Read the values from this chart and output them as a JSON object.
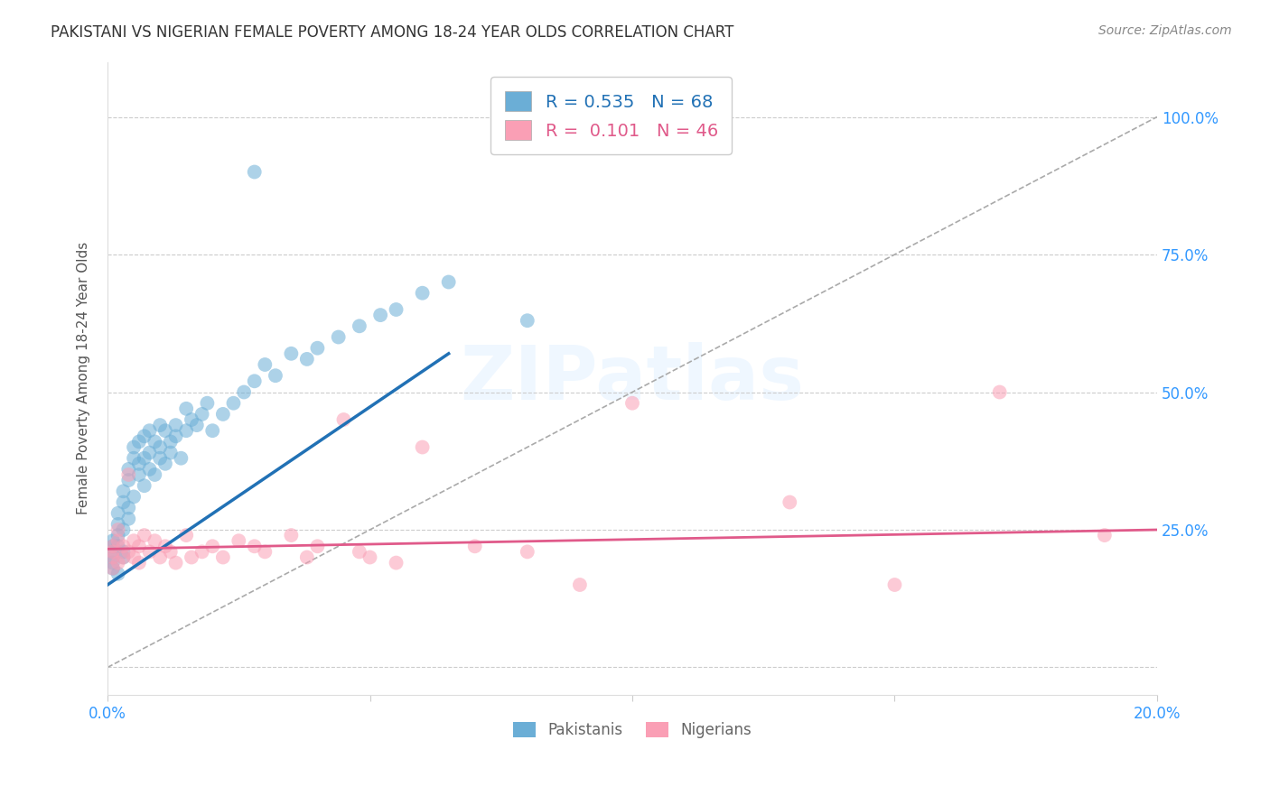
{
  "title": "PAKISTANI VS NIGERIAN FEMALE POVERTY AMONG 18-24 YEAR OLDS CORRELATION CHART",
  "source": "Source: ZipAtlas.com",
  "ylabel": "Female Poverty Among 18-24 Year Olds",
  "xlabel_pakistani": "Pakistanis",
  "xlabel_nigerian": "Nigerians",
  "xmin": 0.0,
  "xmax": 0.2,
  "ymin": -0.05,
  "ymax": 1.1,
  "R_pakistani": 0.535,
  "N_pakistani": 68,
  "R_nigerian": 0.101,
  "N_nigerian": 46,
  "color_pakistani": "#6baed6",
  "color_nigerian": "#fa9fb5",
  "line_color_pakistani": "#2171b5",
  "line_color_nigerian": "#e05a8a",
  "diagonal_color": "#aaaaaa",
  "yticks": [
    0.0,
    0.25,
    0.5,
    0.75,
    1.0
  ],
  "ytick_labels": [
    "",
    "25.0%",
    "50.0%",
    "75.0%",
    "100.0%"
  ],
  "xticks": [
    0.0,
    0.05,
    0.1,
    0.15,
    0.2
  ],
  "xtick_labels": [
    "0.0%",
    "",
    "",
    "",
    "20.0%"
  ],
  "watermark": "ZIPatlas",
  "pakistani_x": [
    0.001,
    0.001,
    0.001,
    0.001,
    0.001,
    0.001,
    0.002,
    0.002,
    0.002,
    0.002,
    0.002,
    0.003,
    0.003,
    0.003,
    0.003,
    0.003,
    0.004,
    0.004,
    0.004,
    0.004,
    0.005,
    0.005,
    0.005,
    0.006,
    0.006,
    0.006,
    0.007,
    0.007,
    0.007,
    0.008,
    0.008,
    0.008,
    0.009,
    0.009,
    0.01,
    0.01,
    0.01,
    0.011,
    0.011,
    0.012,
    0.012,
    0.013,
    0.013,
    0.014,
    0.015,
    0.015,
    0.016,
    0.017,
    0.018,
    0.019,
    0.02,
    0.022,
    0.024,
    0.026,
    0.028,
    0.03,
    0.032,
    0.035,
    0.038,
    0.04,
    0.044,
    0.048,
    0.052,
    0.055,
    0.06,
    0.065,
    0.08,
    0.028
  ],
  "pakistani_y": [
    0.2,
    0.22,
    0.18,
    0.21,
    0.23,
    0.19,
    0.24,
    0.17,
    0.26,
    0.22,
    0.28,
    0.2,
    0.3,
    0.25,
    0.32,
    0.21,
    0.27,
    0.34,
    0.29,
    0.36,
    0.38,
    0.31,
    0.4,
    0.35,
    0.41,
    0.37,
    0.33,
    0.38,
    0.42,
    0.36,
    0.39,
    0.43,
    0.35,
    0.41,
    0.38,
    0.4,
    0.44,
    0.37,
    0.43,
    0.41,
    0.39,
    0.42,
    0.44,
    0.38,
    0.43,
    0.47,
    0.45,
    0.44,
    0.46,
    0.48,
    0.43,
    0.46,
    0.48,
    0.5,
    0.52,
    0.55,
    0.53,
    0.57,
    0.56,
    0.58,
    0.6,
    0.62,
    0.64,
    0.65,
    0.68,
    0.7,
    0.63,
    0.9
  ],
  "nigerian_x": [
    0.001,
    0.001,
    0.001,
    0.001,
    0.002,
    0.002,
    0.002,
    0.003,
    0.003,
    0.004,
    0.004,
    0.005,
    0.005,
    0.006,
    0.006,
    0.007,
    0.008,
    0.009,
    0.01,
    0.011,
    0.012,
    0.013,
    0.015,
    0.016,
    0.018,
    0.02,
    0.022,
    0.025,
    0.028,
    0.03,
    0.035,
    0.038,
    0.04,
    0.045,
    0.048,
    0.05,
    0.055,
    0.06,
    0.07,
    0.08,
    0.09,
    0.1,
    0.13,
    0.15,
    0.17,
    0.19
  ],
  "nigerian_y": [
    0.2,
    0.22,
    0.18,
    0.21,
    0.23,
    0.19,
    0.25,
    0.2,
    0.22,
    0.21,
    0.35,
    0.23,
    0.2,
    0.19,
    0.22,
    0.24,
    0.21,
    0.23,
    0.2,
    0.22,
    0.21,
    0.19,
    0.24,
    0.2,
    0.21,
    0.22,
    0.2,
    0.23,
    0.22,
    0.21,
    0.24,
    0.2,
    0.22,
    0.45,
    0.21,
    0.2,
    0.19,
    0.4,
    0.22,
    0.21,
    0.15,
    0.48,
    0.3,
    0.15,
    0.5,
    0.24
  ]
}
